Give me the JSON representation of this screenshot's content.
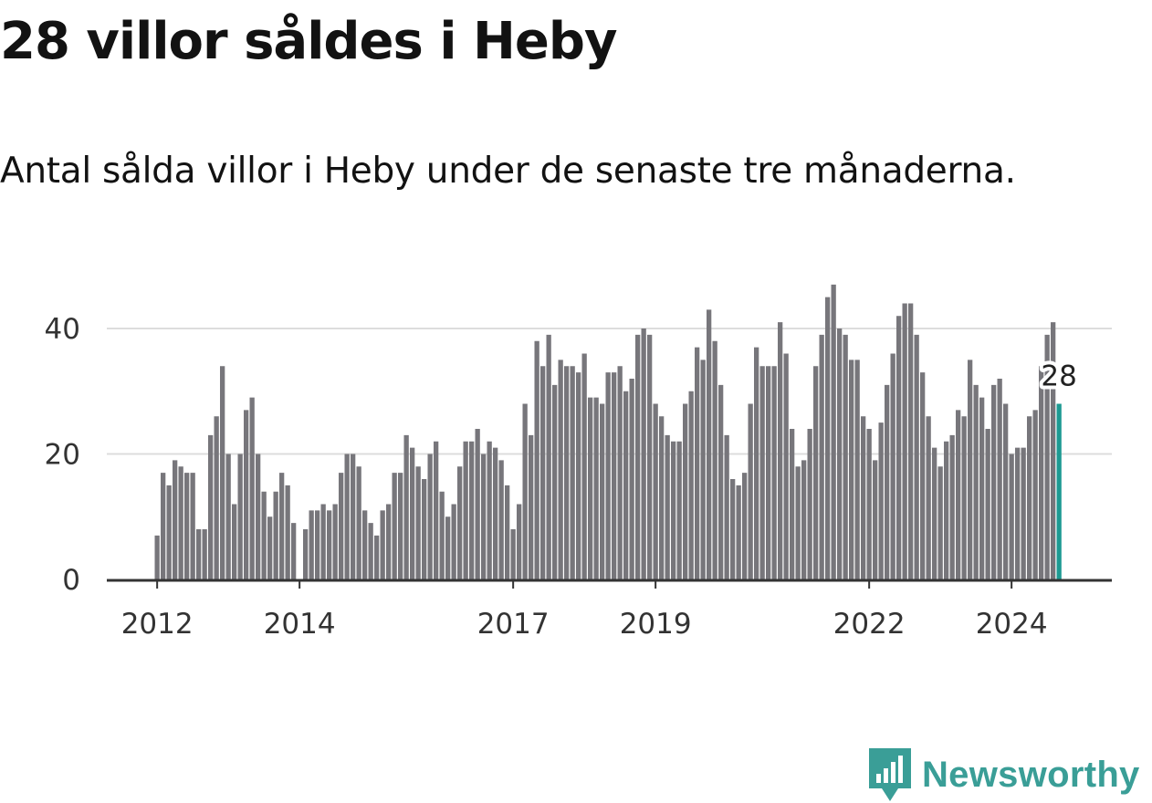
{
  "title": "28 villor såldes i Heby",
  "subtitle": "Antal sålda villor i Heby under de senaste tre månaderna.",
  "brand": {
    "name": "Newsworthy",
    "icon": "newsworthy-logo-icon",
    "color": "#3a9e97"
  },
  "colors": {
    "bar": "#77767b",
    "highlight": "#1d9a92",
    "grid": "#dddddd",
    "axis": "#333333"
  },
  "chart_data": {
    "type": "bar",
    "title": "28 villor såldes i Heby",
    "xlabel": "",
    "ylabel": "",
    "ylim": [
      0,
      50
    ],
    "y_ticks": [
      0,
      20,
      40
    ],
    "x_ticks": [
      {
        "label": "2012",
        "index": 0
      },
      {
        "label": "2014",
        "index": 24
      },
      {
        "label": "2017",
        "index": 60
      },
      {
        "label": "2019",
        "index": 84
      },
      {
        "label": "2022",
        "index": 120
      },
      {
        "label": "2024",
        "index": 144
      }
    ],
    "start": "2012-01",
    "highlight_label": "28",
    "values": [
      7,
      17,
      15,
      19,
      18,
      17,
      17,
      8,
      8,
      23,
      26,
      34,
      20,
      12,
      20,
      27,
      29,
      20,
      14,
      10,
      14,
      17,
      15,
      9,
      0,
      8,
      11,
      11,
      12,
      11,
      12,
      17,
      20,
      20,
      18,
      11,
      9,
      7,
      11,
      12,
      17,
      17,
      23,
      21,
      18,
      16,
      20,
      22,
      14,
      10,
      12,
      18,
      22,
      22,
      24,
      20,
      22,
      21,
      19,
      15,
      8,
      12,
      28,
      23,
      38,
      34,
      39,
      31,
      35,
      34,
      34,
      33,
      36,
      29,
      29,
      28,
      33,
      33,
      34,
      30,
      32,
      39,
      40,
      39,
      28,
      26,
      23,
      22,
      22,
      28,
      30,
      37,
      35,
      43,
      38,
      31,
      23,
      16,
      15,
      17,
      28,
      37,
      34,
      34,
      34,
      41,
      36,
      24,
      18,
      19,
      24,
      34,
      39,
      45,
      47,
      40,
      39,
      35,
      35,
      26,
      24,
      19,
      25,
      31,
      36,
      42,
      44,
      44,
      39,
      33,
      26,
      21,
      18,
      22,
      23,
      27,
      26,
      35,
      31,
      29,
      24,
      31,
      32,
      28,
      20,
      21,
      21,
      26,
      27,
      34,
      39,
      41,
      28
    ]
  }
}
